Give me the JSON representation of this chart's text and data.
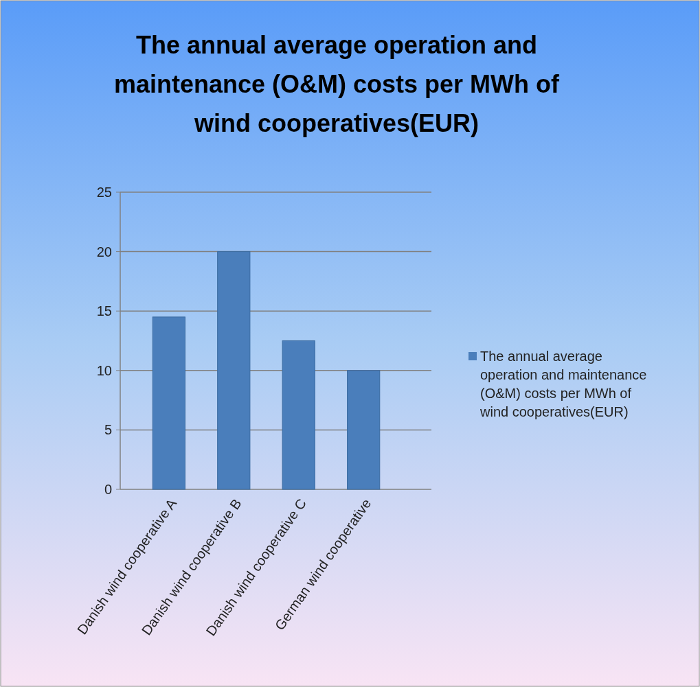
{
  "chart_data": {
    "type": "bar",
    "title": "The annual average operation and maintenance (O&M) costs per MWh of wind cooperatives(EUR)",
    "categories": [
      "Danish wind cooperative A",
      "Danish wind cooperative B",
      "Danish wind cooperative C",
      "German wind cooperative"
    ],
    "series": [
      {
        "name": "The annual average operation and maintenance (O&M) costs per MWh of wind cooperatives(EUR)",
        "color": "#4a7ebb",
        "values": [
          14.5,
          20,
          12.5,
          10
        ]
      }
    ],
    "ylim": [
      0,
      25
    ],
    "yticks": [
      0,
      5,
      10,
      15,
      20,
      25
    ],
    "grid": "y",
    "legend": "right"
  }
}
